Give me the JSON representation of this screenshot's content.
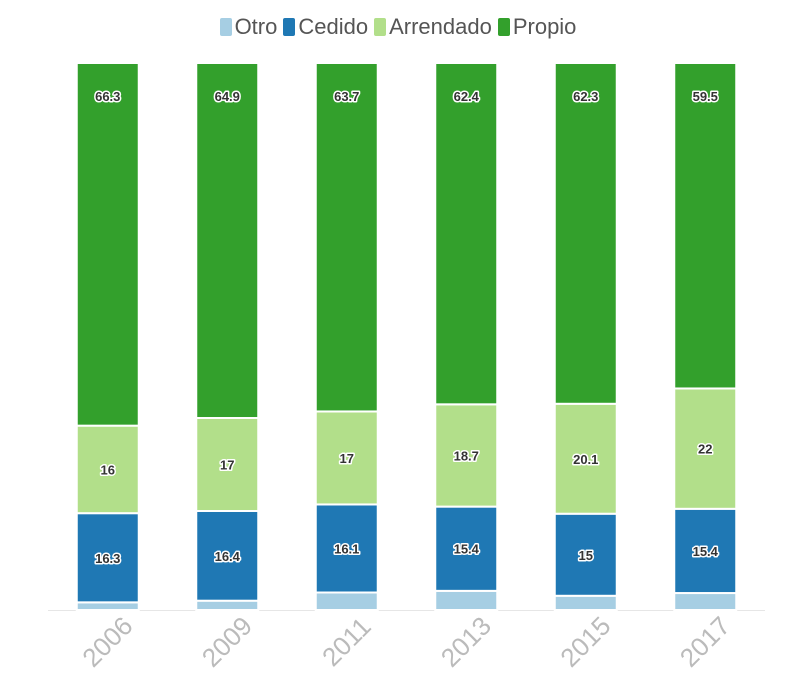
{
  "chart_data": {
    "type": "bar",
    "stacked": true,
    "categories": [
      "2006",
      "2009",
      "2011",
      "2013",
      "2015",
      "2017"
    ],
    "series": [
      {
        "name": "Otro",
        "color": "#a6cee3",
        "values": [
          1.4,
          1.7,
          3.2,
          3.5,
          2.6,
          3.1
        ],
        "labels": [
          "",
          "",
          "",
          "",
          "",
          ""
        ]
      },
      {
        "name": "Cedido",
        "color": "#1f78b4",
        "values": [
          16.3,
          16.4,
          16.1,
          15.4,
          15,
          15.4
        ],
        "labels": [
          "16.3",
          "16.4",
          "16.1",
          "15.4",
          "15",
          "15.4"
        ]
      },
      {
        "name": "Arrendado",
        "color": "#b2df8a",
        "values": [
          16,
          17,
          17,
          18.7,
          20.1,
          22
        ],
        "labels": [
          "16",
          "17",
          "17",
          "18.7",
          "20.1",
          "22"
        ]
      },
      {
        "name": "Propio",
        "color": "#33a02c",
        "values": [
          66.3,
          64.9,
          63.7,
          62.4,
          62.3,
          59.5
        ],
        "labels": [
          "66.3",
          "64.9",
          "63.7",
          "62.4",
          "62.3",
          "59.5"
        ]
      }
    ],
    "legend_position": "top-center",
    "title": "",
    "xlabel": "",
    "ylabel": "",
    "ylim": [
      0,
      100
    ],
    "grid": false,
    "colors": {
      "axis_text": "#bbbbbb",
      "legend_text": "#555555",
      "baseline": "#e6e6e6"
    }
  }
}
